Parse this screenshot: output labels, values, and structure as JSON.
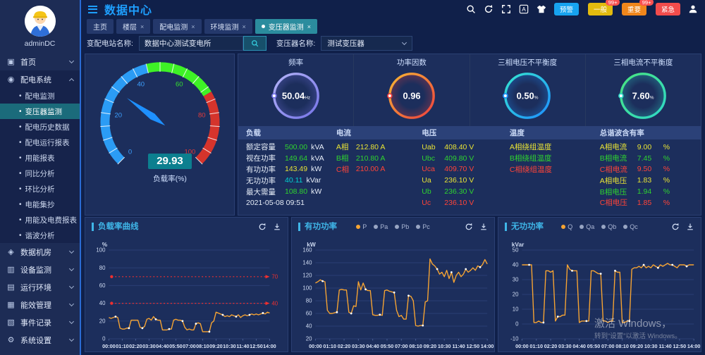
{
  "header": {
    "title": "数据中心",
    "icons": [
      "search-icon",
      "refresh-icon",
      "fullscreen-icon",
      "language-icon",
      "theme-icon",
      "user-icon"
    ],
    "badges": [
      {
        "label": "预警",
        "count": "",
        "color": "#17a3f0"
      },
      {
        "label": "一般",
        "count": "99+",
        "color": "#e3bb0f"
      },
      {
        "label": "重要",
        "count": "99+",
        "color": "#f0861b"
      },
      {
        "label": "紧急",
        "count": "",
        "color": "#f24c4c"
      }
    ]
  },
  "user": {
    "name": "adminDC"
  },
  "sidebar": {
    "items": [
      {
        "label": "首页",
        "icon": "home",
        "expandable": true
      },
      {
        "label": "配电系统",
        "icon": "power",
        "expandable": true,
        "expanded": true,
        "children": [
          "配电监测",
          "变压器监测",
          "配电历史数据",
          "配电运行报表",
          "用能报表",
          "同比分析",
          "环比分析",
          "电能集抄",
          "用能及电费报表",
          "谐波分析"
        ],
        "active_child": "变压器监测"
      },
      {
        "label": "数据机房",
        "icon": "server",
        "expandable": true
      },
      {
        "label": "设备监测",
        "icon": "device",
        "expandable": true
      },
      {
        "label": "运行环境",
        "icon": "env",
        "expandable": true
      },
      {
        "label": "能效管理",
        "icon": "energy",
        "expandable": true
      },
      {
        "label": "事件记录",
        "icon": "log",
        "expandable": true
      },
      {
        "label": "系统设置",
        "icon": "settings",
        "expandable": true
      }
    ]
  },
  "tabs": [
    {
      "label": "主页",
      "closable": false,
      "active": false
    },
    {
      "label": "楼层",
      "closable": true,
      "active": false
    },
    {
      "label": "配电监测",
      "closable": true,
      "active": false
    },
    {
      "label": "环境监测",
      "closable": true,
      "active": false
    },
    {
      "label": "变压器监测",
      "closable": true,
      "active": true
    }
  ],
  "filters": {
    "station_label": "变配电站名称:",
    "station_value": "数据中心测试变电所",
    "transformer_label": "变压器名称:",
    "transformer_value": "测试变压器"
  },
  "gauge": {
    "value": "29.93",
    "numeric": 29.93,
    "label": "负载率(%)",
    "min": 0,
    "max": 100,
    "tick_labels": [
      0,
      20,
      40,
      60,
      80,
      100
    ],
    "segments": [
      {
        "from": 0,
        "to": 45,
        "color": "#2b9cf5"
      },
      {
        "from": 45,
        "to": 72,
        "color": "#3ef226"
      },
      {
        "from": 72,
        "to": 100,
        "color": "#d5342c"
      }
    ],
    "needle_color": "#1e90ff"
  },
  "rings": [
    {
      "title": "频率",
      "value": "50.04",
      "unit": "Hz",
      "c1": "#b3b3f7",
      "c2": "#7674e8"
    },
    {
      "title": "功率因数",
      "value": "0.96",
      "unit": "",
      "c1": "#f7b733",
      "c2": "#ee3f3f"
    },
    {
      "title": "三相电压不平衡度",
      "value": "0.50",
      "unit": "%",
      "c1": "#35e5d0",
      "c2": "#1e90ff"
    },
    {
      "title": "三相电流不平衡度",
      "value": "7.60",
      "unit": "%",
      "c1": "#49e57f",
      "c2": "#2fd8c8"
    }
  ],
  "table": {
    "columns": [
      {
        "header": "负载",
        "rows": [
          {
            "label": "额定容量",
            "lc": "#e6edf8",
            "value": "500.00",
            "vc": "#2fd32f",
            "unit": "kVA",
            "uc": "#e6edf8"
          },
          {
            "label": "视在功率",
            "lc": "#e6edf8",
            "value": "149.64",
            "vc": "#2fd32f",
            "unit": "kVA",
            "uc": "#e6edf8"
          },
          {
            "label": "有功功率",
            "lc": "#e6edf8",
            "value": "143.49",
            "vc": "#e8e335",
            "unit": "kW",
            "uc": "#e6edf8"
          },
          {
            "label": "无功功率",
            "lc": "#e6edf8",
            "value": "40.11",
            "vc": "#00d0d0",
            "unit": "kVar",
            "uc": "#e6edf8"
          },
          {
            "label": "最大需量",
            "lc": "#e6edf8",
            "value": "108.80",
            "vc": "#2fd32f",
            "unit": "kW",
            "uc": "#e6edf8"
          },
          {
            "label": "2021-05-08 09:51",
            "lc": "#e6edf8",
            "value": "",
            "vc": "#e6edf8",
            "unit": "",
            "uc": "#e6edf8"
          }
        ]
      },
      {
        "header": "电流",
        "rows": [
          {
            "label": "A相",
            "lc": "#e8e335",
            "value": "212.80 A",
            "vc": "#e8e335",
            "unit": "",
            "uc": "#e8e335"
          },
          {
            "label": "B相",
            "lc": "#2fd32f",
            "value": "210.80 A",
            "vc": "#2fd32f",
            "unit": "",
            "uc": "#2fd32f"
          },
          {
            "label": "C相",
            "lc": "#ff4438",
            "value": "210.00 A",
            "vc": "#ff4438",
            "unit": "",
            "uc": "#ff4438"
          }
        ]
      },
      {
        "header": "电压",
        "rows": [
          {
            "label": "Uab",
            "lc": "#e8e335",
            "value": "408.40 V",
            "vc": "#e8e335",
            "unit": "",
            "uc": "#e8e335"
          },
          {
            "label": "Ubc",
            "lc": "#2fd32f",
            "value": "409.80 V",
            "vc": "#2fd32f",
            "unit": "",
            "uc": "#2fd32f"
          },
          {
            "label": "Uca",
            "lc": "#ff4438",
            "value": "409.70 V",
            "vc": "#ff4438",
            "unit": "",
            "uc": "#ff4438"
          },
          {
            "label": "Ua",
            "lc": "#e8e335",
            "value": "236.10 V",
            "vc": "#e8e335",
            "unit": "",
            "uc": "#e8e335"
          },
          {
            "label": "Ub",
            "lc": "#2fd32f",
            "value": "236.30 V",
            "vc": "#2fd32f",
            "unit": "",
            "uc": "#2fd32f"
          },
          {
            "label": "Uc",
            "lc": "#ff4438",
            "value": "236.10 V",
            "vc": "#ff4438",
            "unit": "",
            "uc": "#ff4438"
          }
        ]
      },
      {
        "header": "温度",
        "rows": [
          {
            "label": "A相绕组温度",
            "lc": "#e8e335",
            "value": "",
            "vc": "#e8e335",
            "unit": "",
            "uc": "#e8e335"
          },
          {
            "label": "B相绕组温度",
            "lc": "#2fd32f",
            "value": "",
            "vc": "#2fd32f",
            "unit": "",
            "uc": "#2fd32f"
          },
          {
            "label": "C相绕组温度",
            "lc": "#ff4438",
            "value": "",
            "vc": "#ff4438",
            "unit": "",
            "uc": "#ff4438"
          }
        ]
      },
      {
        "header": "总谐波含有率",
        "rows": [
          {
            "label": "A相电流",
            "lc": "#e8e335",
            "value": "9.00",
            "vc": "#e8e335",
            "unit": "%",
            "uc": "#e8e335"
          },
          {
            "label": "B相电流",
            "lc": "#2fd32f",
            "value": "7.45",
            "vc": "#2fd32f",
            "unit": "%",
            "uc": "#2fd32f"
          },
          {
            "label": "C相电流",
            "lc": "#ff4438",
            "value": "9.50",
            "vc": "#ff4438",
            "unit": "%",
            "uc": "#ff4438"
          },
          {
            "label": "A相电压",
            "lc": "#e8e335",
            "value": "1.83",
            "vc": "#e8e335",
            "unit": "%",
            "uc": "#e8e335"
          },
          {
            "label": "B相电压",
            "lc": "#2fd32f",
            "value": "1.94",
            "vc": "#2fd32f",
            "unit": "%",
            "uc": "#2fd32f"
          },
          {
            "label": "C相电压",
            "lc": "#ff4438",
            "value": "1.85",
            "vc": "#ff4438",
            "unit": "%",
            "uc": "#ff4438"
          }
        ]
      }
    ]
  },
  "chart_data": [
    {
      "type": "line",
      "title": "负载率曲线",
      "ylabel": "%",
      "ymin": 0,
      "ymax": 100,
      "ystep": 20,
      "x": [
        "00:00",
        "01:10",
        "02:20",
        "03:30",
        "04:40",
        "05:50",
        "07:00",
        "08:10",
        "09:20",
        "10:30",
        "11:40",
        "12:50",
        "14:00"
      ],
      "legend": [],
      "thresholds": [
        {
          "value": 70,
          "color": "#ef2f2f"
        },
        {
          "value": 40,
          "color": "#ef2f2f"
        }
      ],
      "series": [
        {
          "name": "负载率",
          "color": "#f7a432",
          "values": [
            24,
            23,
            24,
            25,
            24,
            12,
            11,
            11,
            12,
            12,
            21,
            21,
            21,
            21,
            13,
            12,
            14,
            22,
            23,
            21,
            25,
            22,
            21,
            21,
            10,
            10,
            10,
            11,
            11,
            21,
            22,
            21,
            21,
            20,
            13,
            10,
            11,
            10,
            10,
            17,
            18,
            17,
            8,
            8,
            8,
            8,
            18,
            20,
            30,
            29,
            28,
            27,
            25,
            26,
            25,
            27,
            26,
            25,
            27,
            24,
            26,
            27,
            26,
            27,
            28,
            27,
            28,
            27,
            28,
            29,
            28,
            30,
            29
          ]
        }
      ],
      "toolbar": [
        "refresh",
        "download"
      ]
    },
    {
      "type": "line",
      "title": "有功功率",
      "ylabel": "kW",
      "ymin": 20,
      "ymax": 160,
      "ystep": 20,
      "x": [
        "00:00",
        "01:10",
        "02:20",
        "03:30",
        "04:40",
        "05:50",
        "07:00",
        "08:10",
        "09:20",
        "10:30",
        "11:40",
        "12:50",
        "14:00"
      ],
      "legend": [
        {
          "label": "P",
          "color": "#f7a432"
        },
        {
          "label": "Pa",
          "color": "#98a5c3"
        },
        {
          "label": "Pb",
          "color": "#98a5c3"
        },
        {
          "label": "Pc",
          "color": "#98a5c3"
        }
      ],
      "thresholds": [],
      "series": [
        {
          "name": "P",
          "color": "#f7a432",
          "values": [
            108,
            110,
            113,
            111,
            110,
            65,
            60,
            60,
            61,
            62,
            97,
            98,
            97,
            97,
            62,
            60,
            72,
            71,
            110,
            97,
            108,
            98,
            96,
            96,
            58,
            57,
            57,
            58,
            57,
            96,
            97,
            95,
            94,
            93,
            65,
            55,
            57,
            51,
            51,
            88,
            87,
            80,
            41,
            40,
            41,
            41,
            78,
            80,
            146,
            138,
            135,
            130,
            122,
            125,
            118,
            128,
            115,
            125,
            109,
            120,
            125,
            118,
            122,
            130,
            125,
            128,
            132,
            128,
            135,
            133,
            137,
            145,
            138
          ]
        }
      ],
      "toolbar": [
        "refresh",
        "download"
      ]
    },
    {
      "type": "line",
      "title": "无功功率",
      "ylabel": "kVar",
      "ymin": -10,
      "ymax": 50,
      "ystep": 10,
      "x": [
        "00:00",
        "01:10",
        "02:20",
        "03:30",
        "04:40",
        "05:50",
        "07:00",
        "08:10",
        "09:20",
        "10:30",
        "11:40",
        "12:50",
        "14:00"
      ],
      "legend": [
        {
          "label": "Q",
          "color": "#f7a432"
        },
        {
          "label": "Qa",
          "color": "#98a5c3"
        },
        {
          "label": "Qb",
          "color": "#98a5c3"
        },
        {
          "label": "Qc",
          "color": "#98a5c3"
        }
      ],
      "thresholds": [],
      "series": [
        {
          "name": "Q",
          "color": "#f7a432",
          "values": [
            40,
            40,
            40,
            40,
            40,
            1,
            1,
            2,
            1,
            1,
            36,
            36,
            35,
            36,
            2,
            5,
            5,
            6,
            6,
            40,
            37,
            36,
            36,
            36,
            1,
            2,
            2,
            2,
            2,
            36,
            36,
            35,
            34,
            34,
            2,
            2,
            1,
            2,
            2,
            36,
            35,
            35,
            1,
            1,
            2,
            2,
            37,
            38,
            38,
            39,
            38,
            40,
            38,
            39,
            38,
            40,
            39,
            38,
            40,
            39,
            40,
            41,
            40,
            40,
            39,
            38,
            40,
            40,
            40,
            39,
            40,
            40,
            40
          ]
        }
      ],
      "toolbar": [
        "refresh",
        "download"
      ]
    }
  ],
  "watermark": {
    "line1": "激活 Windows，",
    "line2": "转到“设置”以激活 Windows。"
  }
}
